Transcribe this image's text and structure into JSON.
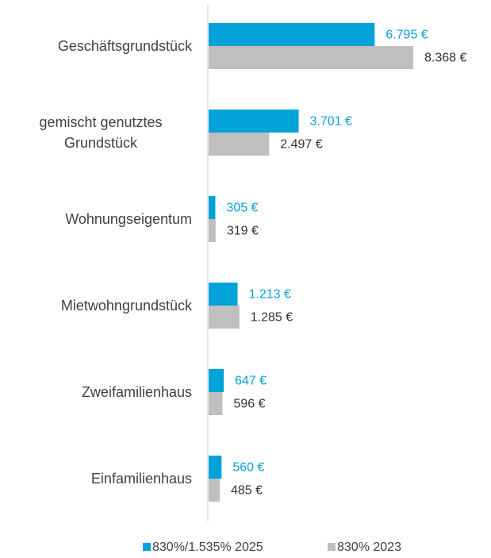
{
  "chart_data": {
    "type": "bar",
    "orientation": "horizontal",
    "categories": [
      "Geschäftsgrundstück",
      "gemischt genutztes Grundstück",
      "Wohnungseigentum",
      "Mietwohngrundstück",
      "Zweifamilienhaus",
      "Einfamilienhaus"
    ],
    "series": [
      {
        "name": "830%/1.535% 2025",
        "color": "#00a2d8",
        "label_color": "#00a2d8",
        "values": [
          6795,
          3701,
          305,
          1213,
          647,
          560
        ],
        "value_labels": [
          "6.795 €",
          "3.701 €",
          "305 €",
          "1.213 €",
          "647 €",
          "560 €"
        ]
      },
      {
        "name": "830% 2023",
        "color": "#bfbfbf",
        "label_color": "#333333",
        "values": [
          8368,
          2497,
          319,
          1285,
          596,
          485
        ],
        "value_labels": [
          "8.368 €",
          "2.497 €",
          "319 €",
          "1.285 €",
          "596 €",
          "485 €"
        ]
      }
    ],
    "legend": "bottom"
  }
}
